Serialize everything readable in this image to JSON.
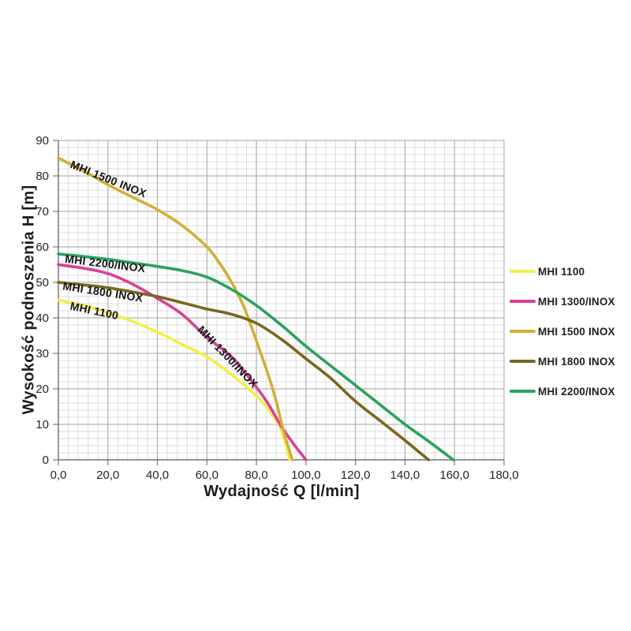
{
  "axes": {
    "x_title": "Wydajność Q [l/min]",
    "y_title": "Wysokość podnoszenia H [m]"
  },
  "chart_data": {
    "type": "line",
    "title": "",
    "xlabel": "Wydajność Q [l/min]",
    "ylabel": "Wysokość podnoszenia H [m]",
    "xlim": [
      0,
      180
    ],
    "ylim": [
      0,
      90
    ],
    "grid": "major-and-minor",
    "x_minor_step": 4,
    "y_minor_step": 2,
    "legend_position": "right-middle",
    "x_ticks": [
      {
        "value": 0,
        "label": "0,0"
      },
      {
        "value": 20,
        "label": "20,0"
      },
      {
        "value": 40,
        "label": "40,0"
      },
      {
        "value": 60,
        "label": "60,0"
      },
      {
        "value": 80,
        "label": "80,0"
      },
      {
        "value": 100,
        "label": "100,0"
      },
      {
        "value": 120,
        "label": "120,0"
      },
      {
        "value": 140,
        "label": "140,0"
      },
      {
        "value": 160,
        "label": "160,0"
      },
      {
        "value": 180,
        "label": "180,0"
      }
    ],
    "y_ticks": [
      {
        "value": 0,
        "label": "0"
      },
      {
        "value": 10,
        "label": "10"
      },
      {
        "value": 20,
        "label": "20"
      },
      {
        "value": 30,
        "label": "30"
      },
      {
        "value": 40,
        "label": "40"
      },
      {
        "value": 50,
        "label": "50"
      },
      {
        "value": 60,
        "label": "60"
      },
      {
        "value": 70,
        "label": "70"
      },
      {
        "value": 80,
        "label": "80"
      },
      {
        "value": 90,
        "label": "90"
      }
    ],
    "series": [
      {
        "name": "MHI 1100",
        "color": "#f4ee4a",
        "points": [
          [
            0,
            45
          ],
          [
            10,
            43.5
          ],
          [
            20,
            41.5
          ],
          [
            30,
            39
          ],
          [
            40,
            36
          ],
          [
            50,
            32.5
          ],
          [
            60,
            29
          ],
          [
            70,
            24
          ],
          [
            80,
            18
          ],
          [
            85,
            14
          ],
          [
            90,
            8.5
          ],
          [
            93.5,
            0
          ]
        ]
      },
      {
        "name": "MHI 1300/INOX",
        "color": "#d84095",
        "points": [
          [
            0,
            55
          ],
          [
            10,
            54
          ],
          [
            20,
            52.5
          ],
          [
            30,
            49.5
          ],
          [
            40,
            45.5
          ],
          [
            50,
            41
          ],
          [
            60,
            34.5
          ],
          [
            70,
            29
          ],
          [
            80,
            20.5
          ],
          [
            85,
            15.5
          ],
          [
            90,
            9.5
          ],
          [
            95,
            4.5
          ],
          [
            100,
            0
          ]
        ]
      },
      {
        "name": "MHI 1500 INOX",
        "color": "#d3ae35",
        "points": [
          [
            0,
            85
          ],
          [
            10,
            81.5
          ],
          [
            20,
            77.5
          ],
          [
            30,
            74
          ],
          [
            40,
            70.5
          ],
          [
            50,
            66
          ],
          [
            60,
            60
          ],
          [
            65,
            55.5
          ],
          [
            70,
            50
          ],
          [
            75,
            43
          ],
          [
            80,
            33.5
          ],
          [
            85,
            23.5
          ],
          [
            88,
            16.5
          ],
          [
            91,
            8
          ],
          [
            94.5,
            0
          ]
        ]
      },
      {
        "name": "MHI 1800 INOX",
        "color": "#7b661e",
        "points": [
          [
            0,
            50
          ],
          [
            10,
            49.3
          ],
          [
            20,
            48.5
          ],
          [
            30,
            47.3
          ],
          [
            40,
            46
          ],
          [
            50,
            44.3
          ],
          [
            60,
            42.5
          ],
          [
            70,
            41
          ],
          [
            80,
            38.5
          ],
          [
            90,
            34
          ],
          [
            100,
            28.5
          ],
          [
            110,
            23
          ],
          [
            120,
            16.5
          ],
          [
            130,
            11
          ],
          [
            140,
            5.5
          ],
          [
            149.5,
            0
          ]
        ]
      },
      {
        "name": "MHI 2200/INOX",
        "color": "#2aa25e",
        "points": [
          [
            0,
            58
          ],
          [
            10,
            57.3
          ],
          [
            20,
            56.5
          ],
          [
            30,
            55.5
          ],
          [
            40,
            54.5
          ],
          [
            50,
            53.3
          ],
          [
            60,
            51.5
          ],
          [
            70,
            48
          ],
          [
            80,
            43.5
          ],
          [
            90,
            38
          ],
          [
            100,
            32
          ],
          [
            110,
            26.5
          ],
          [
            120,
            21
          ],
          [
            130,
            15.5
          ],
          [
            140,
            10
          ],
          [
            150,
            5
          ],
          [
            159.5,
            0
          ]
        ]
      }
    ],
    "curve_labels": [
      {
        "text": "MHI 1500 INOX",
        "q": 4.5,
        "h": 82.4,
        "angle": 22
      },
      {
        "text": "MHI 2200/INOX",
        "q": 2.5,
        "h": 55.6,
        "angle": 7
      },
      {
        "text": "MHI 1800 INOX",
        "q": 1.6,
        "h": 48.0,
        "angle": 9
      },
      {
        "text": "MHI 1100",
        "q": 4.5,
        "h": 42.4,
        "angle": 12
      },
      {
        "text": "MHI 1300/INOX",
        "q": 56.0,
        "h": 36.5,
        "angle": 46
      }
    ]
  },
  "style": {
    "minor_grid_color": "#dcdcdc",
    "major_grid_color": "#a3a3a3",
    "axis_color": "#595959",
    "tick_color": "#7a7a7a"
  }
}
